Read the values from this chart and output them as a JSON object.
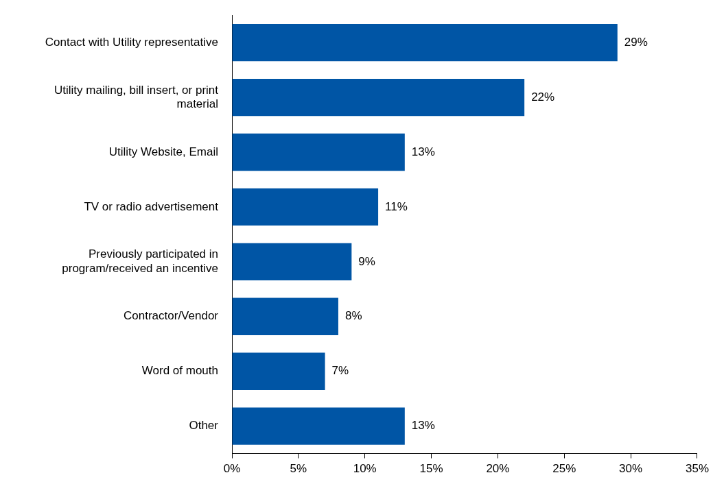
{
  "chart_data": {
    "type": "bar",
    "orientation": "horizontal",
    "categories": [
      "Contact with Utility representative",
      "Utility mailing, bill insert, or print material",
      "Utility Website, Email",
      "TV or radio advertisement",
      "Previously participated in program/received an incentive",
      "Contractor/Vendor",
      "Word of mouth",
      "Other"
    ],
    "values": [
      29,
      22,
      13,
      11,
      9,
      8,
      7,
      13
    ],
    "value_labels": [
      "29%",
      "22%",
      "13%",
      "11%",
      "9%",
      "8%",
      "7%",
      "13%"
    ],
    "color": "#0055a5",
    "xlim": [
      0,
      35
    ],
    "xticks": [
      {
        "value": 0,
        "label": "0%"
      },
      {
        "value": 5,
        "label": "5%"
      },
      {
        "value": 10,
        "label": "10%"
      },
      {
        "value": 15,
        "label": "15%"
      },
      {
        "value": 20,
        "label": "20%"
      },
      {
        "value": 25,
        "label": "25%"
      },
      {
        "value": 30,
        "label": "30%"
      },
      {
        "value": 35,
        "label": "35%"
      }
    ],
    "grid": false,
    "legend": false
  }
}
